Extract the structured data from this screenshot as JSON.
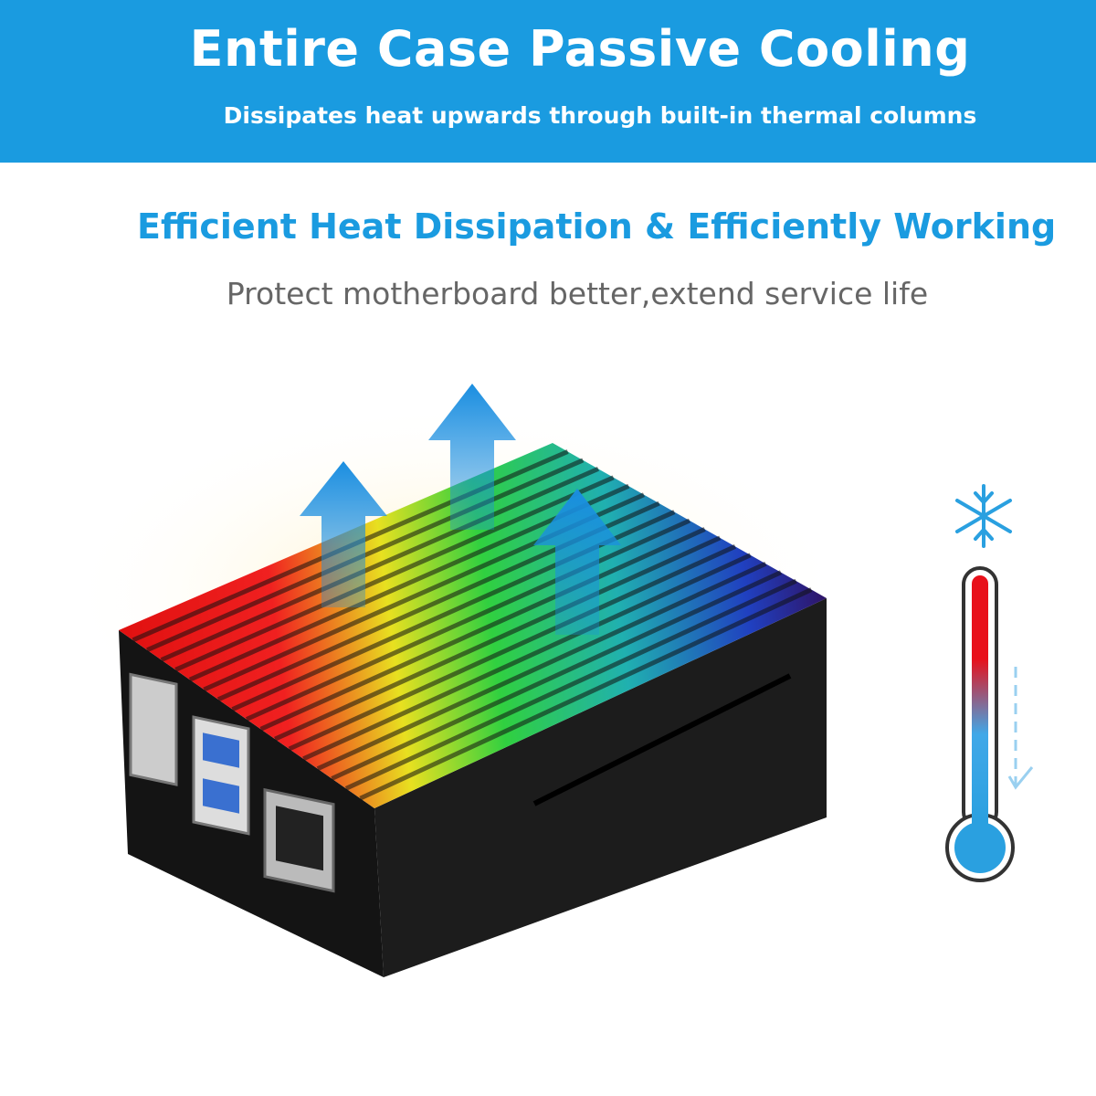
{
  "header": {
    "title": "Entire Case Passive Cooling",
    "subtitle": "Dissipates heat upwards through built-in thermal columns"
  },
  "feature": {
    "heading": "Efficient Heat Dissipation & Efficiently Working",
    "tagline": "Protect motherboard better,extend service life"
  },
  "colors": {
    "brand_blue": "#1a9be0",
    "tagline_gray": "#666666",
    "case_black": "#1a1a1a",
    "hot_red": "#e8101a",
    "cool_blue": "#2aa0e0"
  },
  "icons": [
    "heat-arrow-up-icon",
    "snowflake-icon",
    "thermometer-icon"
  ]
}
